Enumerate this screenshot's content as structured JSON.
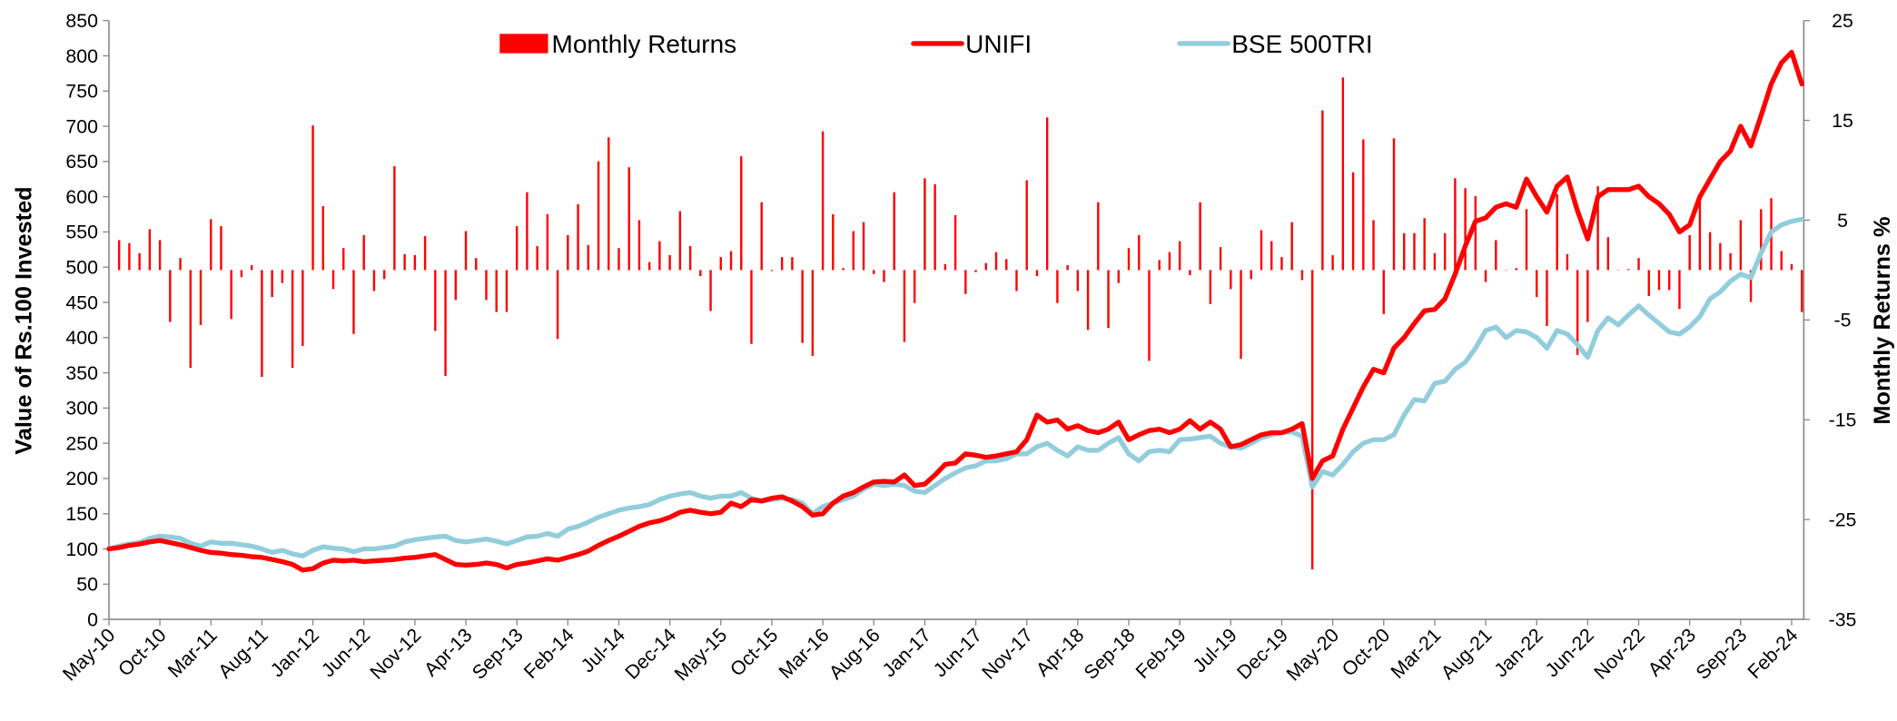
{
  "chart_data": {
    "type": "line",
    "ylabel": "Value of Rs.100 Invested",
    "y2label": "Monthly Returns %",
    "categories": [
      "May-10",
      null,
      null,
      null,
      null,
      "Oct-10",
      null,
      null,
      null,
      null,
      "Mar-11",
      null,
      null,
      null,
      null,
      "Aug-11",
      null,
      null,
      null,
      null,
      "Jan-12",
      null,
      null,
      null,
      null,
      "Jun-12",
      null,
      null,
      null,
      null,
      "Nov-12",
      null,
      null,
      null,
      null,
      "Apr-13",
      null,
      null,
      null,
      null,
      "Sep-13",
      null,
      null,
      null,
      null,
      "Feb-14",
      null,
      null,
      null,
      null,
      "Jul-14",
      null,
      null,
      null,
      null,
      "Dec-14",
      null,
      null,
      null,
      null,
      "May-15",
      null,
      null,
      null,
      null,
      "Oct-15",
      null,
      null,
      null,
      null,
      "Mar-16",
      null,
      null,
      null,
      null,
      "Aug-16",
      null,
      null,
      null,
      null,
      "Jan-17",
      null,
      null,
      null,
      null,
      "Jun-17",
      null,
      null,
      null,
      null,
      "Nov-17",
      null,
      null,
      null,
      null,
      "Apr-18",
      null,
      null,
      null,
      null,
      "Sep-18",
      null,
      null,
      null,
      null,
      "Feb-19",
      null,
      null,
      null,
      null,
      "Jul-19",
      null,
      null,
      null,
      null,
      "Dec-19",
      null,
      null,
      null,
      null,
      "May-20",
      null,
      null,
      null,
      null,
      "Oct-20",
      null,
      null,
      null,
      null,
      "Mar-21",
      null,
      null,
      null,
      null,
      "Aug-21",
      null,
      null,
      null,
      null,
      "Jan-22",
      null,
      null,
      null,
      null,
      "Jun-22",
      null,
      null,
      null,
      null,
      "Nov-22",
      null,
      null,
      null,
      null,
      "Apr-23",
      null,
      null,
      null,
      null,
      "Sep-23",
      null,
      null,
      null,
      null,
      "Feb-24",
      null
    ],
    "series": [
      {
        "name": "Monthly Returns",
        "type": "bar",
        "axis": "y2",
        "color": "#ff0000",
        "values": [
          null,
          3.0,
          2.7,
          1.7,
          4.1,
          3.0,
          -5.2,
          1.2,
          -9.8,
          -5.5,
          5.1,
          4.4,
          -4.9,
          -0.7,
          0.5,
          -10.7,
          -2.7,
          -1.3,
          -9.8,
          -7.6,
          14.5,
          6.4,
          -1.9,
          2.2,
          -6.4,
          3.5,
          -2.1,
          -0.9,
          10.4,
          1.6,
          1.5,
          3.4,
          -6.1,
          -10.6,
          -3.0,
          3.9,
          1.2,
          -3.0,
          -4.2,
          -4.2,
          4.4,
          7.8,
          2.4,
          5.6,
          -6.9,
          3.5,
          6.6,
          2.5,
          10.9,
          13.3,
          2.2,
          10.3,
          5.0,
          0.8,
          2.9,
          1.5,
          5.9,
          2.4,
          -0.6,
          -4.1,
          1.3,
          1.9,
          11.4,
          -7.4,
          6.8,
          -0.1,
          1.3,
          1.3,
          -7.3,
          -8.6,
          13.9,
          5.6,
          0.2,
          3.9,
          4.8,
          -0.4,
          -1.2,
          7.8,
          -7.2,
          -3.3,
          9.2,
          8.6,
          0.6,
          5.5,
          -2.4,
          -0.2,
          0.7,
          1.8,
          1.1,
          -2.1,
          9.0,
          -0.6,
          15.3,
          -3.3,
          0.5,
          -2.1,
          -6.0,
          6.8,
          -5.8,
          -1.3,
          2.2,
          3.5,
          -9.1,
          1.0,
          1.8,
          2.9,
          -0.5,
          6.8,
          -3.4,
          2.3,
          -1.9,
          -8.9,
          -0.9,
          4.0,
          2.9,
          1.3,
          4.8,
          -1.0,
          -30.0,
          16.0,
          1.5,
          19.3,
          9.8,
          13.1,
          5.0,
          -4.4,
          13.2,
          3.7,
          3.7,
          5.2,
          1.7,
          3.7,
          9.2,
          8.2,
          7.4,
          -1.2,
          3.0,
          0,
          0.2,
          6.1,
          -2.7,
          -5.6,
          7.6,
          1.6,
          -8.5,
          -5.2,
          8.4,
          3.3,
          0,
          0.1,
          1.2,
          -2.6,
          -2.0,
          -2.0,
          -3.9,
          3.5,
          7.6,
          3.8,
          2.7,
          1.7,
          5.0,
          -3.2,
          6.1,
          7.2,
          1.9,
          0.6,
          -4.2
        ]
      },
      {
        "name": "UNIFI",
        "type": "line",
        "color": "#ff0000",
        "values": [
          100,
          102,
          105,
          107,
          110,
          112,
          109,
          106,
          102,
          98,
          95,
          94,
          92,
          91,
          89,
          88,
          85,
          82,
          78,
          70,
          72,
          80,
          84,
          83,
          84,
          82,
          83,
          84,
          85,
          87,
          88,
          90,
          92,
          85,
          78,
          77,
          78,
          80,
          78,
          73,
          78,
          80,
          83,
          86,
          84,
          88,
          92,
          97,
          105,
          112,
          118,
          125,
          132,
          137,
          140,
          145,
          152,
          155,
          152,
          150,
          152,
          165,
          160,
          170,
          168,
          172,
          174,
          168,
          160,
          148,
          150,
          165,
          175,
          180,
          188,
          195,
          196,
          195,
          205,
          190,
          192,
          205,
          220,
          222,
          235,
          233,
          230,
          232,
          235,
          238,
          255,
          290,
          280,
          283,
          270,
          275,
          268,
          265,
          270,
          280,
          255,
          262,
          268,
          270,
          265,
          270,
          282,
          270,
          280,
          270,
          245,
          248,
          255,
          262,
          265,
          265,
          270,
          278,
          200,
          225,
          232,
          270,
          300,
          330,
          355,
          350,
          385,
          400,
          420,
          438,
          440,
          455,
          490,
          530,
          565,
          570,
          585,
          590,
          585,
          625,
          600,
          578,
          615,
          628,
          580,
          540,
          600,
          610,
          610,
          610,
          615,
          600,
          590,
          575,
          550,
          560,
          600,
          625,
          650,
          665,
          700,
          672,
          715,
          760,
          790,
          805,
          760
        ]
      },
      {
        "name": "BSE 500TRI",
        "type": "line",
        "color": "#92cddc",
        "values": [
          100,
          104,
          107,
          109,
          115,
          118,
          117,
          115,
          108,
          104,
          110,
          108,
          108,
          106,
          104,
          100,
          95,
          98,
          93,
          90,
          98,
          103,
          101,
          100,
          96,
          100,
          100,
          102,
          104,
          110,
          113,
          115,
          117,
          118,
          112,
          110,
          112,
          114,
          111,
          107,
          112,
          117,
          118,
          122,
          118,
          128,
          132,
          138,
          145,
          150,
          155,
          158,
          160,
          163,
          170,
          175,
          178,
          180,
          175,
          172,
          175,
          175,
          180,
          172,
          168,
          170,
          172,
          170,
          165,
          150,
          160,
          165,
          170,
          175,
          185,
          192,
          190,
          192,
          190,
          182,
          180,
          190,
          200,
          208,
          215,
          218,
          225,
          225,
          228,
          235,
          235,
          245,
          250,
          240,
          232,
          245,
          240,
          240,
          250,
          258,
          235,
          225,
          238,
          240,
          238,
          255,
          256,
          258,
          260,
          250,
          245,
          243,
          250,
          258,
          262,
          265,
          266,
          260,
          188,
          210,
          205,
          220,
          238,
          250,
          255,
          255,
          262,
          290,
          312,
          310,
          335,
          338,
          355,
          365,
          385,
          410,
          415,
          400,
          410,
          408,
          400,
          385,
          410,
          405,
          390,
          372,
          410,
          428,
          418,
          432,
          445,
          432,
          420,
          408,
          405,
          415,
          430,
          455,
          465,
          480,
          490,
          485,
          520,
          550,
          560,
          565,
          568
        ]
      }
    ],
    "ylim": [
      0,
      850
    ],
    "yticks": [
      0,
      50,
      100,
      150,
      200,
      250,
      300,
      350,
      400,
      450,
      500,
      550,
      600,
      650,
      700,
      750,
      800,
      850
    ],
    "y2lim": [
      -35,
      25
    ],
    "y2ticks": [
      -35,
      -25,
      -15,
      -5,
      5,
      15,
      25
    ],
    "grid": false,
    "legend": "top"
  }
}
